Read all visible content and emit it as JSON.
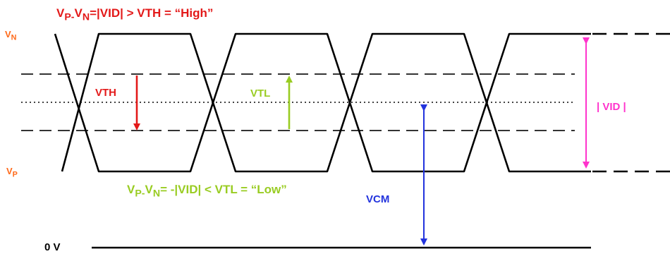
{
  "labels": {
    "title_main": "V",
    "title_sub": "P-",
    "title_mid": "V",
    "title_sub2": "N",
    "title_rest": "=|VID| > VTH = “High”",
    "low_main": "V",
    "low_sub": "P-",
    "low_mid": "V",
    "low_sub2": "N",
    "low_rest": "= -|VID| < VTL = “Low”",
    "vn_main": "V",
    "vn_sub": "N",
    "vp_main": "V",
    "vp_sub": "P",
    "vth": "VTH",
    "vtl": "VTL",
    "vid": "| VID |",
    "vcm": "VCM",
    "zero_v": "0 V"
  },
  "colors": {
    "title": "#e31919",
    "low": "#99cc22",
    "vn_vp": "#ff6a1a",
    "vth": "#e31919",
    "vtl": "#99cc22",
    "vid": "#ff33cc",
    "vcm": "#2233dd",
    "signal": "#000000"
  }
}
